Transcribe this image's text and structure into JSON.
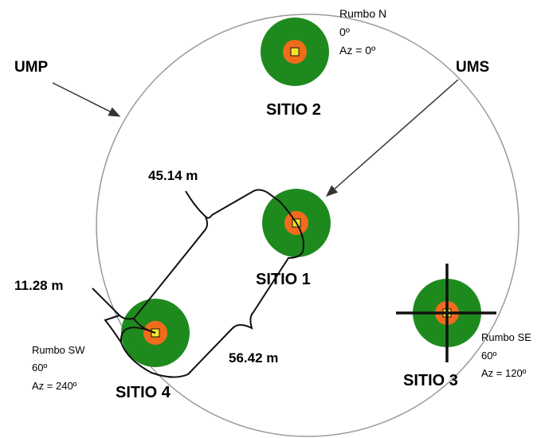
{
  "labels": {
    "ump": "UMP",
    "ums": "UMS",
    "dist_45": "45.14 m",
    "dist_11": "11.28 m",
    "dist_56": "56.42 m"
  },
  "sites": {
    "sitio2": {
      "name": "SITIO 2",
      "rumbo": "Rumbo N",
      "deg": "0º",
      "az": "Az = 0º"
    },
    "sitio1": {
      "name": "SITIO 1"
    },
    "sitio3": {
      "name": "SITIO 3",
      "rumbo": "Rumbo SE",
      "deg": "60º",
      "az": "Az = 120º"
    },
    "sitio4": {
      "name": "SITIO 4",
      "rumbo": "Rumbo SW",
      "deg": "60º",
      "az": "Az = 240º"
    }
  },
  "colors": {
    "plot_green": "#1e8a1e",
    "plot_orange": "#f26b1d",
    "plot_yellow": "#f7e62a",
    "outline": "#111111",
    "circle": "#9a9a9a"
  }
}
